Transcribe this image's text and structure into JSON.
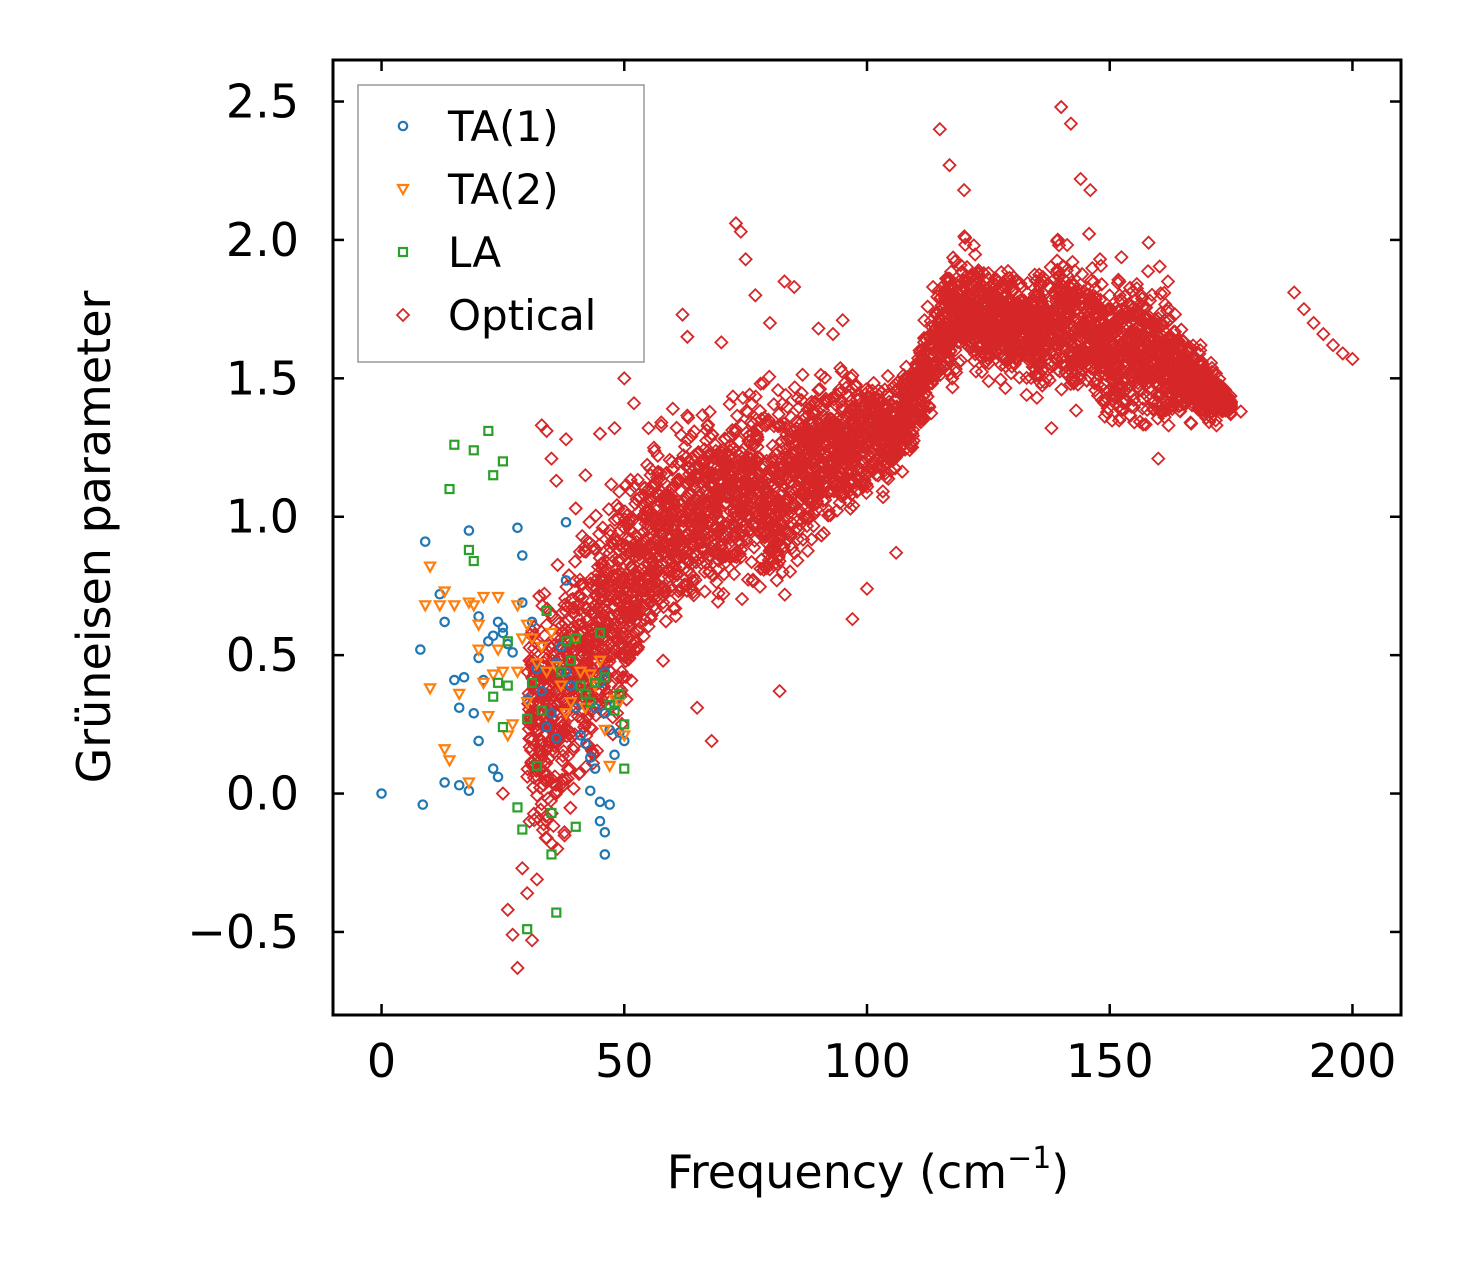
{
  "chart_data": {
    "type": "scatter",
    "title": "",
    "xlabel": "Frequency (cm",
    "xlabel_sup": "−1",
    "xlabel_close": ")",
    "ylabel": "Grüneisen parameter",
    "xlim": [
      -10,
      210
    ],
    "ylim": [
      -0.8,
      2.65
    ],
    "xticks": [
      0,
      50,
      100,
      150,
      200
    ],
    "xtick_labels": [
      "0",
      "50",
      "100",
      "150",
      "200"
    ],
    "yticks": [
      -0.5,
      0.0,
      0.5,
      1.0,
      1.5,
      2.0,
      2.5
    ],
    "ytick_labels": [
      "−0.5",
      "0.0",
      "0.5",
      "1.0",
      "1.5",
      "2.0",
      "2.5"
    ],
    "grid": false,
    "legend_position": "top-left",
    "series": [
      {
        "name": "TA(1)",
        "marker": "circle",
        "color": "#1f77b4",
        "points": [
          [
            0,
            0.0
          ],
          [
            8,
            0.52
          ],
          [
            9,
            0.91
          ],
          [
            8.5,
            -0.04
          ],
          [
            12,
            0.72
          ],
          [
            13,
            0.62
          ],
          [
            13,
            0.04
          ],
          [
            15,
            0.41
          ],
          [
            16,
            0.31
          ],
          [
            16,
            0.03
          ],
          [
            17,
            0.42
          ],
          [
            18,
            0.95
          ],
          [
            18,
            0.01
          ],
          [
            19,
            0.29
          ],
          [
            20,
            0.64
          ],
          [
            20,
            0.49
          ],
          [
            20,
            0.19
          ],
          [
            21,
            0.41
          ],
          [
            22,
            0.55
          ],
          [
            23,
            0.57
          ],
          [
            23,
            0.09
          ],
          [
            24,
            0.62
          ],
          [
            24,
            0.06
          ],
          [
            25,
            0.6
          ],
          [
            25,
            0.58
          ],
          [
            26,
            0.54
          ],
          [
            27,
            0.51
          ],
          [
            28,
            0.96
          ],
          [
            29,
            0.86
          ],
          [
            29,
            0.69
          ],
          [
            30,
            0.34
          ],
          [
            31,
            0.62
          ],
          [
            32,
            0.45
          ],
          [
            33,
            0.37
          ],
          [
            34,
            0.24
          ],
          [
            35,
            0.29
          ],
          [
            36,
            0.47
          ],
          [
            36,
            0.2
          ],
          [
            37,
            0.53
          ],
          [
            38,
            0.98
          ],
          [
            38,
            0.77
          ],
          [
            38,
            0.44
          ],
          [
            39,
            0.39
          ],
          [
            40,
            0.31
          ],
          [
            41,
            0.21
          ],
          [
            42,
            0.18
          ],
          [
            43,
            0.13
          ],
          [
            43,
            0.01
          ],
          [
            44,
            0.31
          ],
          [
            44,
            0.09
          ],
          [
            45,
            0.4
          ],
          [
            45,
            -0.1
          ],
          [
            45,
            -0.03
          ],
          [
            46,
            0.44
          ],
          [
            46,
            0.29
          ],
          [
            46,
            -0.22
          ],
          [
            46,
            -0.14
          ],
          [
            47,
            0.23
          ],
          [
            47,
            -0.04
          ],
          [
            48,
            0.14
          ],
          [
            48,
            0.32
          ],
          [
            49,
            0.22
          ],
          [
            50,
            0.19
          ]
        ]
      },
      {
        "name": "TA(2)",
        "marker": "triangle-down",
        "color": "#ff7f0e",
        "points": [
          [
            9,
            0.68
          ],
          [
            10,
            0.82
          ],
          [
            10,
            0.38
          ],
          [
            12,
            0.68
          ],
          [
            13,
            0.73
          ],
          [
            13,
            0.16
          ],
          [
            14,
            0.12
          ],
          [
            15,
            0.68
          ],
          [
            16,
            0.36
          ],
          [
            18,
            0.69
          ],
          [
            18,
            0.04
          ],
          [
            19,
            0.68
          ],
          [
            20,
            0.61
          ],
          [
            20,
            0.52
          ],
          [
            21,
            0.71
          ],
          [
            21,
            0.4
          ],
          [
            22,
            0.28
          ],
          [
            23,
            0.43
          ],
          [
            24,
            0.71
          ],
          [
            24,
            0.52
          ],
          [
            25,
            0.44
          ],
          [
            26,
            0.21
          ],
          [
            27,
            0.25
          ],
          [
            28,
            0.68
          ],
          [
            28,
            0.44
          ],
          [
            29,
            0.56
          ],
          [
            30,
            0.61
          ],
          [
            30,
            0.33
          ],
          [
            31,
            0.56
          ],
          [
            32,
            0.47
          ],
          [
            33,
            0.53
          ],
          [
            34,
            0.44
          ],
          [
            35,
            0.58
          ],
          [
            36,
            0.46
          ],
          [
            37,
            0.39
          ],
          [
            38,
            0.29
          ],
          [
            39,
            0.33
          ],
          [
            40,
            0.56
          ],
          [
            41,
            0.44
          ],
          [
            42,
            0.31
          ],
          [
            43,
            0.43
          ],
          [
            44,
            0.39
          ],
          [
            45,
            0.48
          ],
          [
            46,
            0.23
          ],
          [
            47,
            0.1
          ],
          [
            48,
            0.34
          ],
          [
            49,
            0.33
          ],
          [
            50,
            0.21
          ]
        ]
      },
      {
        "name": "LA",
        "marker": "square",
        "color": "#2ca02c",
        "points": [
          [
            14,
            1.1
          ],
          [
            15,
            1.26
          ],
          [
            18,
            0.88
          ],
          [
            19,
            1.24
          ],
          [
            19,
            0.84
          ],
          [
            22,
            1.31
          ],
          [
            23,
            1.15
          ],
          [
            23,
            0.35
          ],
          [
            24,
            0.4
          ],
          [
            25,
            1.2
          ],
          [
            25,
            0.24
          ],
          [
            26,
            0.55
          ],
          [
            26,
            0.39
          ],
          [
            28,
            -0.05
          ],
          [
            29,
            -0.13
          ],
          [
            30,
            -0.49
          ],
          [
            30,
            0.27
          ],
          [
            31,
            0.4
          ],
          [
            32,
            0.1
          ],
          [
            33,
            0.3
          ],
          [
            34,
            0.66
          ],
          [
            35,
            -0.07
          ],
          [
            35,
            -0.22
          ],
          [
            36,
            -0.43
          ],
          [
            37,
            0.44
          ],
          [
            38,
            0.55
          ],
          [
            39,
            0.48
          ],
          [
            40,
            0.56
          ],
          [
            40,
            -0.12
          ],
          [
            41,
            0.39
          ],
          [
            42,
            0.36
          ],
          [
            43,
            0.33
          ],
          [
            44,
            0.4
          ],
          [
            45,
            0.58
          ],
          [
            46,
            0.42
          ],
          [
            47,
            0.32
          ],
          [
            48,
            0.3
          ],
          [
            49,
            0.36
          ],
          [
            50,
            0.25
          ],
          [
            50,
            0.09
          ]
        ]
      },
      {
        "name": "Optical",
        "marker": "diamond",
        "color": "#d62728",
        "points": [
          [
            25,
            0.0
          ],
          [
            26,
            -0.42
          ],
          [
            27,
            -0.51
          ],
          [
            28,
            -0.63
          ],
          [
            29,
            -0.27
          ],
          [
            30,
            -0.36
          ],
          [
            31,
            -0.53
          ],
          [
            32,
            -0.31
          ],
          [
            33,
            1.33
          ],
          [
            34,
            1.31
          ],
          [
            35,
            1.21
          ],
          [
            36,
            1.13
          ],
          [
            38,
            1.28
          ],
          [
            40,
            1.03
          ],
          [
            42,
            1.15
          ],
          [
            45,
            1.3
          ],
          [
            48,
            1.32
          ],
          [
            50,
            1.5
          ],
          [
            52,
            1.41
          ],
          [
            55,
            1.32
          ],
          [
            58,
            0.48
          ],
          [
            60,
            1.39
          ],
          [
            62,
            1.73
          ],
          [
            63,
            1.65
          ],
          [
            65,
            0.31
          ],
          [
            68,
            0.19
          ],
          [
            70,
            1.63
          ],
          [
            73,
            2.06
          ],
          [
            74,
            2.03
          ],
          [
            75,
            1.93
          ],
          [
            77,
            1.8
          ],
          [
            80,
            1.7
          ],
          [
            82,
            0.37
          ],
          [
            83,
            1.85
          ],
          [
            85,
            1.83
          ],
          [
            90,
            1.68
          ],
          [
            93,
            1.66
          ],
          [
            95,
            1.71
          ],
          [
            97,
            0.63
          ],
          [
            100,
            0.74
          ],
          [
            103,
            1.45
          ],
          [
            106,
            0.87
          ],
          [
            110,
            1.55
          ],
          [
            115,
            2.4
          ],
          [
            117,
            2.27
          ],
          [
            120,
            2.18
          ],
          [
            122,
            1.98
          ],
          [
            125,
            1.88
          ],
          [
            128,
            1.61
          ],
          [
            130,
            1.7
          ],
          [
            133,
            1.64
          ],
          [
            135,
            1.43
          ],
          [
            138,
            1.32
          ],
          [
            140,
            2.48
          ],
          [
            142,
            2.42
          ],
          [
            144,
            2.22
          ],
          [
            146,
            2.18
          ],
          [
            148,
            1.93
          ],
          [
            150,
            1.58
          ],
          [
            152,
            1.85
          ],
          [
            155,
            1.71
          ],
          [
            158,
            1.99
          ],
          [
            160,
            1.21
          ],
          [
            162,
            1.85
          ],
          [
            165,
            1.55
          ],
          [
            168,
            1.48
          ],
          [
            170,
            1.47
          ],
          [
            172,
            1.33
          ],
          [
            175,
            1.4
          ],
          [
            177,
            1.38
          ],
          [
            188,
            1.81
          ],
          [
            190,
            1.75
          ],
          [
            192,
            1.7
          ],
          [
            194,
            1.66
          ],
          [
            196,
            1.62
          ],
          [
            198,
            1.59
          ],
          [
            200,
            1.57
          ]
        ],
        "cloud_envelope": [
          [
            30,
            -0.2,
            0.7
          ],
          [
            35,
            -0.4,
            0.95
          ],
          [
            40,
            -0.1,
            1.05
          ],
          [
            45,
            0.0,
            1.15
          ],
          [
            50,
            0.1,
            1.25
          ],
          [
            55,
            0.4,
            1.35
          ],
          [
            60,
            0.5,
            1.45
          ],
          [
            65,
            0.55,
            1.5
          ],
          [
            70,
            0.6,
            1.5
          ],
          [
            75,
            0.65,
            1.55
          ],
          [
            80,
            0.6,
            1.6
          ],
          [
            85,
            0.7,
            1.55
          ],
          [
            90,
            0.85,
            1.6
          ],
          [
            95,
            0.9,
            1.6
          ],
          [
            100,
            1.0,
            1.6
          ],
          [
            105,
            1.05,
            1.55
          ],
          [
            110,
            1.2,
            1.65
          ],
          [
            115,
            1.35,
            1.95
          ],
          [
            120,
            1.5,
            2.05
          ],
          [
            125,
            1.45,
            1.95
          ],
          [
            130,
            1.45,
            1.95
          ],
          [
            135,
            1.4,
            1.9
          ],
          [
            140,
            1.35,
            2.1
          ],
          [
            145,
            1.3,
            2.05
          ],
          [
            150,
            1.25,
            1.95
          ],
          [
            155,
            1.25,
            1.95
          ],
          [
            160,
            1.25,
            1.95
          ],
          [
            165,
            1.3,
            1.75
          ],
          [
            170,
            1.3,
            1.6
          ],
          [
            175,
            1.35,
            1.45
          ]
        ]
      }
    ]
  }
}
